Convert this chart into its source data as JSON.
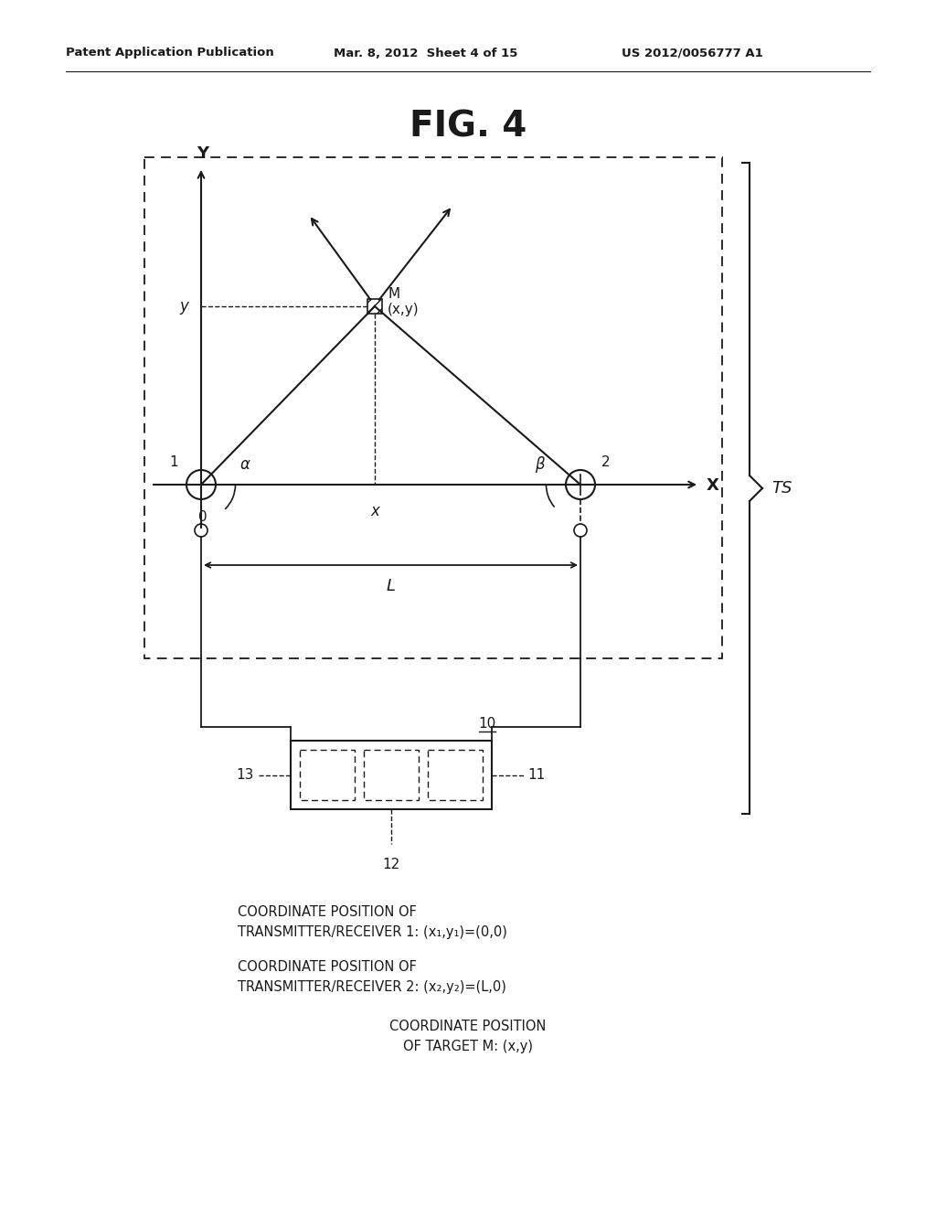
{
  "title": "FIG. 4",
  "header_left": "Patent Application Publication",
  "header_mid": "Mar. 8, 2012  Sheet 4 of 15",
  "header_right": "US 2012/0056777 A1",
  "bg_color": "#ffffff",
  "line_color": "#1a1a1a",
  "note1_line1": "COORDINATE POSITION OF",
  "note1_line2": "TRANSMITTER/RECEIVER 1: (x₁,y₁)=(0,0)",
  "note2_line1": "COORDINATE POSITION OF",
  "note2_line2": "TRANSMITTER/RECEIVER 2: (x₂,y₂)=(L,0)",
  "note3_line1": "COORDINATE POSITION",
  "note3_line2": "OF TARGET M: (x,y)",
  "label_TS": "TS",
  "label_10": "10",
  "label_11": "11",
  "label_12": "12",
  "label_13": "13"
}
